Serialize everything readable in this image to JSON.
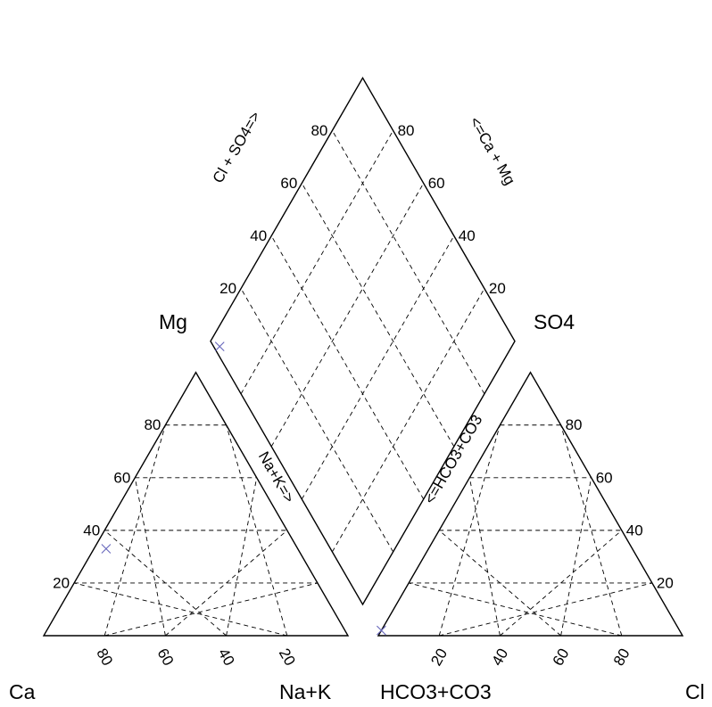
{
  "chart_data": {
    "type": "scatter",
    "subtype": "piper-trilinear-diagram",
    "grid": "dashed, 20% intervals",
    "marker": "x",
    "marker_color": "#6666bb",
    "cation_triangle": {
      "corners": {
        "left": "Ca",
        "right": "Na+K",
        "top": "Mg"
      },
      "left_ticks": [
        "20",
        "40",
        "60",
        "80"
      ],
      "bottom_ticks": [
        "80",
        "60",
        "40",
        "20"
      ],
      "edge_title": "Na+K=>",
      "points": [
        {
          "Ca": 63,
          "Mg": 33,
          "NaK": 4
        }
      ]
    },
    "anion_triangle": {
      "corners": {
        "left": "HCO3+CO3",
        "right": "Cl",
        "top": "SO4"
      },
      "right_ticks": [
        "20",
        "40",
        "60",
        "80"
      ],
      "bottom_ticks": [
        "20",
        "40",
        "60",
        "80"
      ],
      "edge_title": "<=HCO3+CO3",
      "points": [
        {
          "HCO3_CO3": 98,
          "SO4": 2,
          "Cl": 0
        }
      ]
    },
    "diamond": {
      "left_ticks": [
        "20",
        "40",
        "60",
        "80"
      ],
      "right_ticks": [
        "20",
        "40",
        "60",
        "80"
      ],
      "left_title": "Cl + SO4=>",
      "right_title": "<=Ca + Mg",
      "points": [
        {
          "Cl_SO4": 2,
          "Ca_Mg": 96
        }
      ]
    }
  }
}
